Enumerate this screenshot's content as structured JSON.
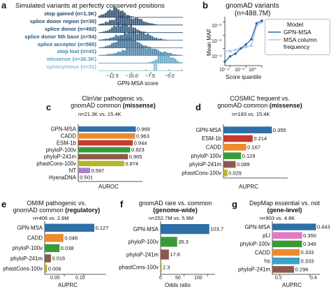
{
  "panels": {
    "a": {
      "letter": "a",
      "title": "Simulated variants at perfectly conserved positions",
      "xlabel": "GPN-MSA score",
      "xticks": [
        "−12.5",
        "−10.0",
        "−7.5",
        "−5.0"
      ],
      "categories": [
        {
          "label": "stop gained (n=1.3K)",
          "color": "#1d3b5c"
        },
        {
          "label": "splice donor region (n=30)",
          "color": "#1f4468"
        },
        {
          "label": "splice donor (n=492)",
          "color": "#224d74"
        },
        {
          "label": "splice donor 5th base (n=54)",
          "color": "#27577f"
        },
        {
          "label": "splice acceptor (n=585)",
          "color": "#2d638b"
        },
        {
          "label": "stop lost (n=41)",
          "color": "#3b78a0"
        },
        {
          "label": "missense (n=26.3K)",
          "color": "#5c9dbd"
        },
        {
          "label": "synonymous (n=31)",
          "color": "#84c0d3"
        }
      ]
    },
    "b": {
      "letter": "b",
      "title": "gnomAD variants",
      "subtitle": "(n=488.7M)",
      "xlabel": "Score quantile",
      "ylabel": "Mean MAF",
      "xticks": [
        "10⁻⁶",
        "10⁻³",
        "10⁰"
      ],
      "yticks": [
        "10⁻²",
        "10⁻³",
        "10⁻⁴"
      ],
      "legend_title": "Model",
      "legend": [
        "GPN-MSA",
        "MSA column frequency"
      ],
      "legend_line2": "frequency"
    },
    "c": {
      "letter": "c",
      "title1": "ClinVar pathogenic vs.",
      "title2": "gnomAD common",
      "title2_bold": "(missense)",
      "n": "n=21.3K vs. 15.4K",
      "xlabel": "AUROC"
    },
    "d": {
      "letter": "d",
      "title1": "COSMIC frequent vs.",
      "title2": "gnomAD common",
      "title2_bold": "(missense)",
      "n": "n=183 vs. 15.4K",
      "xlabel": "AUPRC"
    },
    "e": {
      "letter": "e",
      "title1": "OMIM pathogenic vs.",
      "title2": "gnomAD common",
      "title2_bold": "(regulatory)",
      "n": "n=406 vs. 2.6M",
      "xlabel": "AUPRC",
      "xticks": [
        "0.05",
        "0.10"
      ]
    },
    "f": {
      "letter": "f",
      "title1": "gnomAD rare vs. common",
      "title2_bold": "(genome-wide)",
      "n": "n=252.7M vs. 5.9M",
      "xlabel": "Odds ratio",
      "xticks": [
        "0",
        "50",
        "100"
      ]
    },
    "g": {
      "letter": "g",
      "title1": "DepMap essential vs. not",
      "title2_bold": "(gene-level)",
      "n": "n=903 vs. 4.8K",
      "xlabel": "AUPRC",
      "xticks": [
        "0.2",
        "0.4"
      ]
    }
  },
  "colors": {
    "GPN-MSA": "#2f6fa8",
    "CADD": "#ee8a2c",
    "ESM-1b": "#c83a2f",
    "phyloP-100v": "#3a9a3a",
    "phyloP-241m": "#8c5a4c",
    "phastCons-100v": "#b8b42a",
    "NT": "#a97fd2",
    "HyenaDNA": "#6d6d6d",
    "pLI": "#e27ac4",
    "hs": "#3aa3c6"
  },
  "chart_data": [
    {
      "type": "bar",
      "panel": "c",
      "categories": [
        "GPN-MSA",
        "CADD",
        "ESM-1b",
        "phyloP-100v",
        "phyloP-241m",
        "phastCons-100v",
        "NT",
        "HyenaDNA"
      ],
      "values": [
        0.969,
        0.963,
        0.944,
        0.923,
        0.905,
        0.874,
        0.597,
        0.501
      ],
      "labels": [
        "0.969",
        "0.963",
        "0.944",
        "0.923",
        "0.905",
        "0.874",
        "0.597",
        "0.501"
      ],
      "xlim": [
        0.5,
        1.0
      ],
      "xlabel": "AUROC"
    },
    {
      "type": "bar",
      "panel": "d",
      "categories": [
        "GPN-MSA",
        "ESM-1b",
        "CADD",
        "phyloP-100v",
        "phyloP-241m",
        "phastCons-100v"
      ],
      "values": [
        0.355,
        0.214,
        0.167,
        0.129,
        0.089,
        0.029
      ],
      "labels": [
        "0.355",
        "0.214",
        "0.167",
        "0.129",
        "0.089",
        "0.029"
      ],
      "xlim": [
        0.0,
        0.45
      ],
      "xlabel": "AUPRC"
    },
    {
      "type": "bar",
      "panel": "e",
      "categories": [
        "GPN-MSA",
        "CADD",
        "phyloP-100v",
        "phyloP-241m",
        "phastCons-100v"
      ],
      "values": [
        0.127,
        0.048,
        0.038,
        0.016,
        0.006
      ],
      "labels": [
        "0.127",
        "0.048",
        "0.038",
        "0.016",
        "0.006"
      ],
      "xlim": [
        0.0,
        0.15
      ],
      "xlabel": "AUPRC"
    },
    {
      "type": "bar",
      "panel": "f",
      "categories": [
        "GPN-MSA",
        "phyloP-100v",
        "phyloP-241m",
        "phastCons-100v"
      ],
      "values": [
        103.7,
        35.3,
        17.6,
        2.3
      ],
      "labels": [
        "103.7",
        "35.3",
        "17.6",
        "2.3"
      ],
      "xlim": [
        0,
        110
      ],
      "xlabel": "Odds ratio"
    },
    {
      "type": "bar",
      "panel": "g",
      "categories": [
        "GPN-MSA",
        "pLI",
        "phyloP-100v",
        "CADD",
        "hs",
        "phyloP-241m"
      ],
      "values": [
        0.443,
        0.35,
        0.349,
        0.333,
        0.333,
        0.296
      ],
      "labels": [
        "0.443",
        "0.350",
        "0.349",
        "0.333",
        "0.333",
        "0.296"
      ],
      "xlim": [
        0.15,
        0.45
      ],
      "xlabel": "AUPRC"
    },
    {
      "type": "line",
      "panel": "b",
      "x": [
        -7,
        -6,
        -5,
        -4,
        -3,
        -2,
        -1,
        0
      ],
      "series": [
        {
          "name": "GPN-MSA",
          "values": [
            -5.0,
            -4.6,
            -4.4,
            -4.0,
            -3.7,
            -3.3,
            -2.1,
            -1.9
          ]
        },
        {
          "name": "MSA column frequency",
          "values": [
            -4.2,
            -4.2,
            -4.1,
            -4.0,
            -3.9,
            -3.8,
            -2.3,
            -2.0
          ]
        }
      ],
      "xlabel": "Score quantile",
      "ylabel": "Mean MAF",
      "log_x": true,
      "log_y": true
    }
  ]
}
